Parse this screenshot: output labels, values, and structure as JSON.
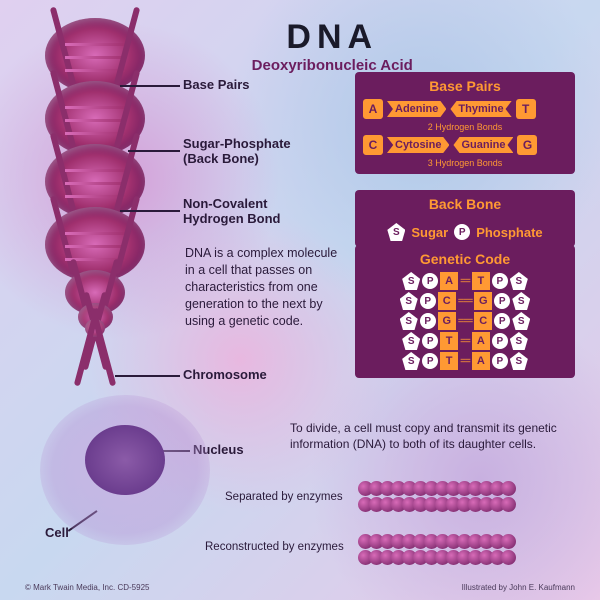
{
  "title": {
    "main": "DNA",
    "sub": "Deoxyribonucleic Acid"
  },
  "labels": {
    "basePairs": "Base Pairs",
    "backbone": "Sugar-Phosphate\n(Back Bone)",
    "hbond": "Non-Covalent\nHydrogen Bond",
    "chromosome": "Chromosome",
    "nucleus": "Nucleus",
    "cell": "Cell"
  },
  "description": "DNA is a complex molecule in a cell that passes on characteristics from one generation to the next by using a genetic code.",
  "boxes": {
    "basePairs": {
      "title": "Base Pairs",
      "rows": [
        {
          "l": "A",
          "lw": "Adenine",
          "rw": "Thymine",
          "r": "T",
          "bonds": "2 Hydrogen Bonds"
        },
        {
          "l": "C",
          "lw": "Cytosine",
          "rw": "Guanine",
          "r": "G",
          "bonds": "3 Hydrogen Bonds"
        }
      ]
    },
    "backbone": {
      "title": "Back Bone",
      "s": "S",
      "sugar": "Sugar",
      "p": "P",
      "phosphate": "Phosphate"
    },
    "geneticCode": {
      "title": "Genetic Code",
      "rows": [
        {
          "l": "A",
          "r": "T",
          "b": 2
        },
        {
          "l": "C",
          "r": "G",
          "b": 3
        },
        {
          "l": "G",
          "r": "C",
          "b": 3
        },
        {
          "l": "T",
          "r": "A",
          "b": 2
        },
        {
          "l": "T",
          "r": "A",
          "b": 2
        }
      ]
    }
  },
  "division": {
    "intro": "To divide, a cell must copy and transmit its genetic information (DNA) to both of its daughter cells.",
    "sep": "Separated by enzymes",
    "recon": "Reconstructed by enzymes"
  },
  "footer": {
    "left": "© Mark Twain Media, Inc.   CD-5925",
    "right": "Illustrated by John E. Kaufmann"
  },
  "colors": {
    "box": "#6b1d5e",
    "accent": "#ff9933",
    "helix": "#a0306e"
  }
}
